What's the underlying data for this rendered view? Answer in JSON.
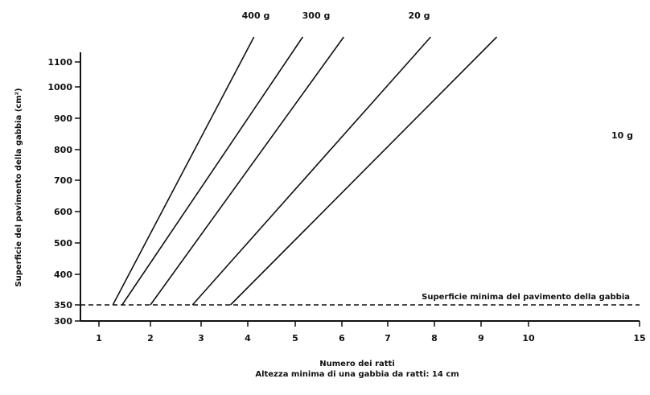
{
  "chart_data": {
    "type": "line",
    "title": "",
    "xlabel": "Numero dei ratti",
    "xlabel2": "Altezza minima di una gabbia da ratti: 14 cm",
    "ylabel": "Superficie del pavimento della gabbia (cm²)",
    "x_ticks": [
      1,
      2,
      3,
      4,
      5,
      6,
      7,
      8,
      9,
      10,
      15
    ],
    "x_tick_labels": [
      "1",
      "2",
      "3",
      "4",
      "5",
      "6",
      "7",
      "8",
      "9",
      "10",
      "15"
    ],
    "y_ticks": [
      300,
      350,
      400,
      500,
      600,
      700,
      800,
      900,
      1000,
      1100
    ],
    "y_tick_labels": [
      "300",
      "350",
      "400",
      "500",
      "600",
      "700",
      "800",
      "900",
      "1000",
      "1100"
    ],
    "grid": false,
    "series": [
      {
        "name": "400 g",
        "points": [
          [
            1.27,
            350
          ],
          [
            4.13,
            1200
          ]
        ]
      },
      {
        "name": "300 g",
        "points": [
          [
            1.45,
            350
          ],
          [
            5.16,
            1200
          ]
        ]
      },
      {
        "name": "",
        "points": [
          [
            2.0,
            350
          ],
          [
            6.04,
            1200
          ]
        ]
      },
      {
        "name": "20 g",
        "points": [
          [
            2.83,
            350
          ],
          [
            7.92,
            1200
          ]
        ]
      },
      {
        "name": "10 g",
        "points": [
          [
            3.63,
            350
          ],
          [
            9.33,
            1200
          ]
        ]
      }
    ],
    "reference_line": {
      "y": 350,
      "style": "dashed",
      "label": "Superficie minima del pavimento della gabbia"
    }
  }
}
